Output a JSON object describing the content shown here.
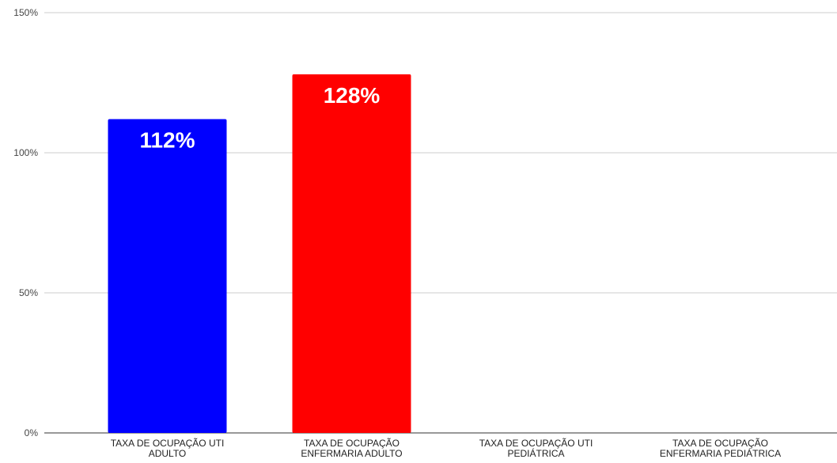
{
  "chart_data": {
    "type": "bar",
    "title": "",
    "xlabel": "",
    "ylabel": "",
    "ylim": [
      0,
      150
    ],
    "y_ticks": [
      0,
      50,
      100,
      150
    ],
    "y_tick_labels": [
      "0%",
      "50%",
      "100%",
      "150%"
    ],
    "grid": true,
    "legend": "none",
    "categories": [
      [
        "TAXA DE OCUPAÇÃO UTI",
        "ADULTO"
      ],
      [
        "TAXA DE OCUPAÇÃO",
        "ENFERMARIA ADULTO"
      ],
      [
        "TAXA DE OCUPAÇÃO UTI",
        "PEDIÁTRICA"
      ],
      [
        "TAXA DE OCUPAÇÃO",
        "ENFERMARIA PEDIÁTRICA"
      ]
    ],
    "values": [
      112,
      128,
      null,
      null
    ],
    "data_labels": [
      "112%",
      "128%",
      "",
      ""
    ],
    "colors": [
      "#0000ff",
      "#ff0000",
      "#cccccc",
      "#cccccc"
    ],
    "gridline_color": "#cccccc",
    "axis_color": "#333333"
  }
}
